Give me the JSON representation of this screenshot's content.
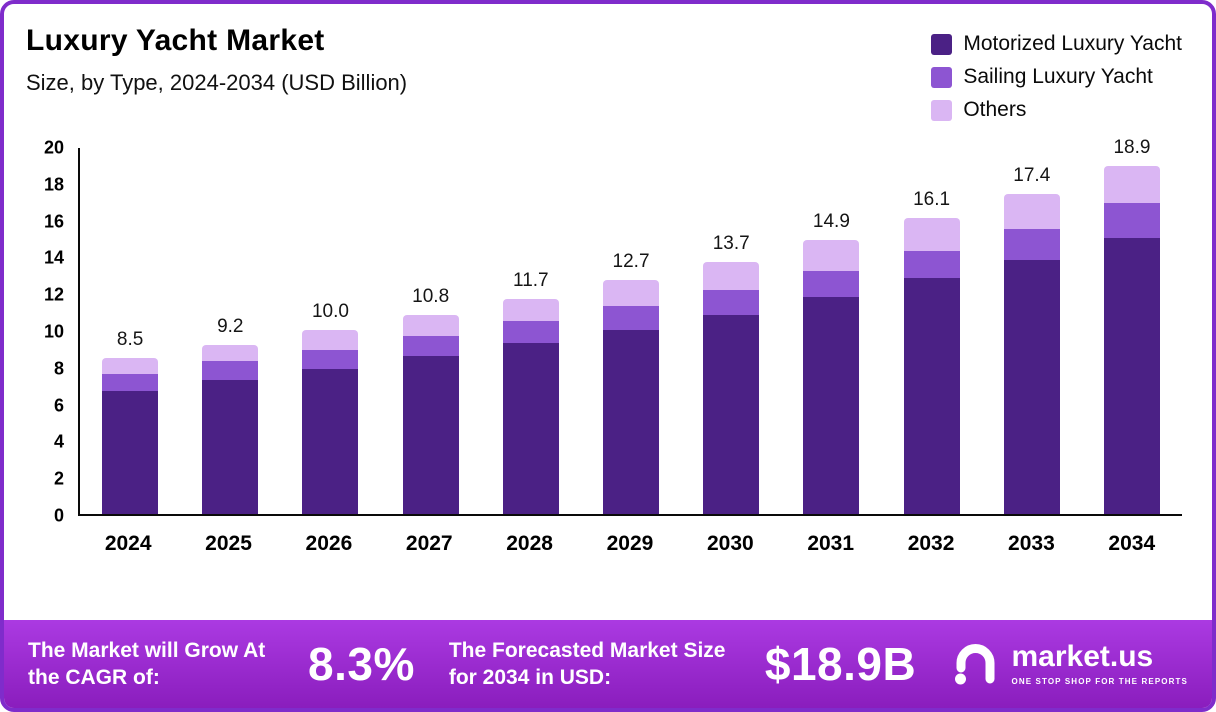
{
  "header": {
    "title": "Luxury Yacht Market",
    "subtitle": "Size, by Type, 2024-2034 (USD Billion)"
  },
  "theme": {
    "border": "#7f2ccb",
    "banner_from": "#ab3ae2",
    "banner_to": "#8a1dbd",
    "motorized_color": "#4b2185",
    "sailing_color": "#8d55d2",
    "others_color": "#dab6f3"
  },
  "chart_data": {
    "type": "bar",
    "stacked": true,
    "title": "Luxury Yacht Market Size, by Type, 2024-2034 (USD Billion)",
    "xlabel": "",
    "ylabel": "USD Billion",
    "ylim": [
      0,
      20
    ],
    "yticks": [
      0,
      2,
      4,
      6,
      8,
      10,
      12,
      14,
      16,
      18,
      20
    ],
    "grid": false,
    "legend_position": "top-right",
    "categories": [
      "2024",
      "2025",
      "2026",
      "2027",
      "2028",
      "2029",
      "2030",
      "2031",
      "2032",
      "2033",
      "2034"
    ],
    "series": [
      {
        "name": "Motorized Luxury Yacht",
        "color": "#4b2185",
        "values": [
          6.7,
          7.3,
          7.9,
          8.6,
          9.3,
          10.0,
          10.8,
          11.8,
          12.8,
          13.8,
          15.0
        ]
      },
      {
        "name": "Sailing Luxury Yacht",
        "color": "#8d55d2",
        "values": [
          0.9,
          1.0,
          1.0,
          1.1,
          1.2,
          1.3,
          1.4,
          1.4,
          1.5,
          1.7,
          1.9
        ]
      },
      {
        "name": "Others",
        "color": "#dab6f3",
        "values": [
          0.9,
          0.9,
          1.1,
          1.1,
          1.2,
          1.4,
          1.5,
          1.7,
          1.8,
          1.9,
          2.0
        ]
      }
    ],
    "totals": [
      8.5,
      9.2,
      10.0,
      10.8,
      11.7,
      12.7,
      13.7,
      14.9,
      16.1,
      17.4,
      18.9
    ]
  },
  "footer": {
    "cagr_label": "The Market will Grow At the CAGR of:",
    "cagr_value": "8.3%",
    "forecast_label": "The Forecasted Market Size for 2034 in USD:",
    "forecast_value": "$18.9B",
    "brand": "market.us",
    "brand_tagline": "One Stop Shop for the Reports"
  }
}
